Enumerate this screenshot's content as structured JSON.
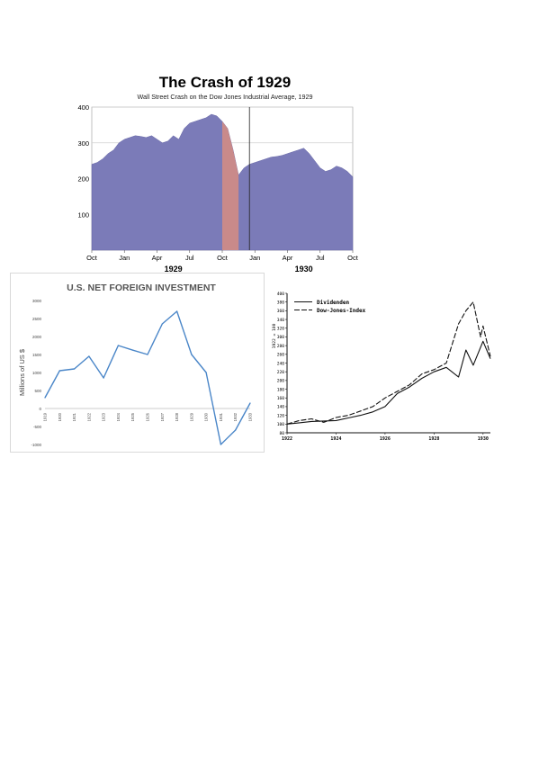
{
  "chart_data": [
    {
      "type": "area",
      "title": "The Crash of 1929",
      "subtitle": "Wall Street Crash on the Dow Jones Industrial Average, 1929",
      "colors": {
        "fill": "#7b7bb8",
        "crash_fill": "#c98a8a"
      },
      "y_ticks": [
        "400",
        "300",
        "200",
        "100"
      ],
      "ylim": [
        0,
        400
      ],
      "x_ticks": [
        "Oct",
        "Jan",
        "Apr",
        "Jul",
        "Oct",
        "Jan",
        "Apr",
        "Jul",
        "Oct"
      ],
      "year_labels": [
        "1929",
        "1930"
      ],
      "grid": true,
      "x": [
        0,
        0.5,
        1,
        1.5,
        2,
        2.5,
        3,
        3.5,
        4,
        4.5,
        5,
        5.5,
        6,
        6.5,
        7,
        7.5,
        8,
        8.5,
        9,
        9.5,
        10,
        10.5,
        11,
        11.5,
        12,
        12.5,
        13,
        13.5,
        14,
        14.5,
        15,
        15.5,
        16,
        16.5,
        17,
        17.5,
        18,
        18.5,
        19,
        19.5,
        20,
        20.5,
        21,
        21.5,
        22,
        22.5,
        23,
        23.5,
        24
      ],
      "values": [
        240,
        245,
        255,
        270,
        280,
        300,
        310,
        315,
        320,
        318,
        315,
        320,
        310,
        300,
        305,
        320,
        310,
        340,
        355,
        360,
        365,
        370,
        380,
        375,
        360,
        340,
        280,
        210,
        230,
        240,
        245,
        250,
        255,
        260,
        262,
        265,
        270,
        275,
        280,
        285,
        270,
        250,
        230,
        220,
        225,
        235,
        230,
        220,
        205
      ],
      "crash_range": [
        12,
        13.5
      ],
      "marker_line_x": 14.5
    },
    {
      "type": "line",
      "title": "U.S. NET FOREIGN INVESTMENT",
      "ylabel": "Millions of US $",
      "colors": {
        "line": "#4a86c8",
        "zero_line": "#bbbbbb"
      },
      "y_ticks": [
        "3000",
        "2500",
        "2000",
        "1500",
        "1000",
        "500",
        "0",
        "-500",
        "-1000"
      ],
      "ylim": [
        -1000,
        3000
      ],
      "categories": [
        "1919",
        "1920",
        "1921",
        "1922",
        "1923",
        "1924",
        "1925",
        "1926",
        "1927",
        "1928",
        "1929",
        "1930",
        "1931",
        "1932",
        "1933"
      ],
      "values": [
        300,
        1050,
        1100,
        1450,
        850,
        1750,
        1620,
        1500,
        2350,
        2700,
        1500,
        1000,
        -1000,
        -600,
        150
      ]
    },
    {
      "type": "line",
      "y_ticks": [
        "400",
        "380",
        "360",
        "340",
        "320",
        "300",
        "280",
        "260",
        "240",
        "220",
        "200",
        "180",
        "160",
        "140",
        "120",
        "100",
        "80"
      ],
      "ylim": [
        80,
        400
      ],
      "ylabel": "1922 = 100",
      "x_ticks": [
        "1922",
        "1924",
        "1926",
        "1928",
        "1930"
      ],
      "xlim": [
        1922,
        1930.3
      ],
      "legend_placement": "top-left",
      "series": [
        {
          "name": "Dividenden",
          "x": [
            1922,
            1922.5,
            1923,
            1923.5,
            1924,
            1924.5,
            1925,
            1925.5,
            1926,
            1926.5,
            1927,
            1927.5,
            1928,
            1928.5,
            1929,
            1929.3,
            1929.6,
            1930,
            1930.3
          ],
          "values": [
            100,
            103,
            106,
            107,
            108,
            114,
            120,
            128,
            140,
            170,
            185,
            205,
            220,
            230,
            208,
            270,
            235,
            290,
            250
          ]
        },
        {
          "name": "Dow-Jones-Index",
          "x": [
            1922,
            1922.5,
            1923,
            1923.5,
            1924,
            1924.5,
            1925,
            1925.5,
            1926,
            1926.5,
            1927,
            1927.5,
            1928,
            1928.5,
            1929,
            1929.3,
            1929.6,
            1929.9,
            1930,
            1930.3
          ],
          "values": [
            100,
            108,
            112,
            104,
            115,
            120,
            130,
            140,
            160,
            175,
            190,
            215,
            225,
            240,
            330,
            360,
            380,
            300,
            325,
            255
          ]
        }
      ]
    }
  ]
}
